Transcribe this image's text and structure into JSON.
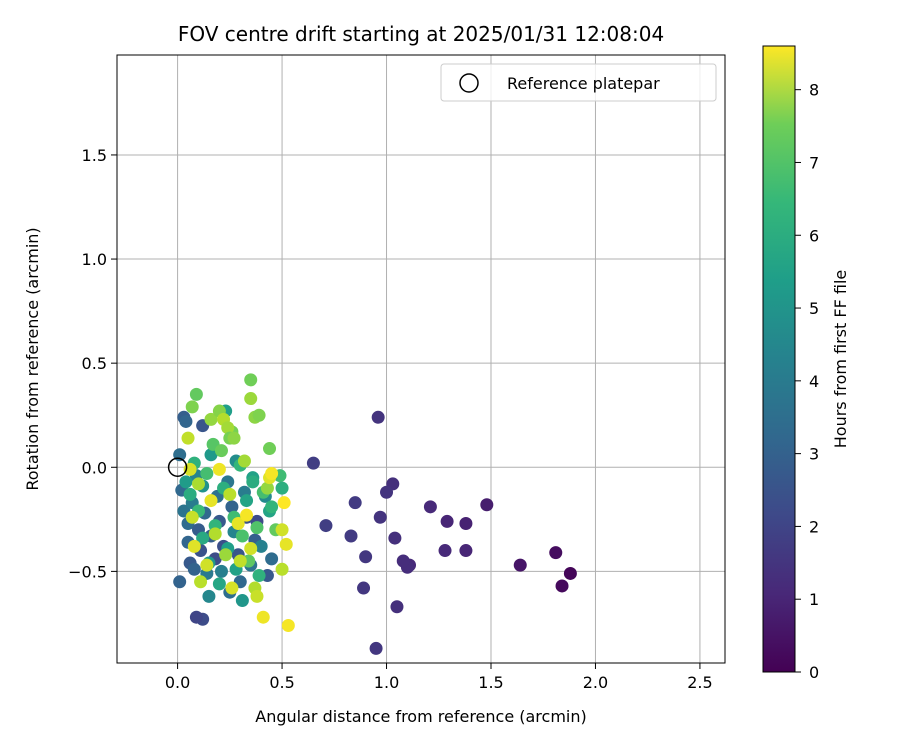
{
  "chart_data": {
    "type": "scatter",
    "title": "FOV centre drift starting at 2025/01/31 12:08:04",
    "xlabel": "Angular distance from reference (arcmin)",
    "ylabel": "Rotation from reference (arcmin)",
    "xlim": [
      -0.29,
      2.62
    ],
    "ylim": [
      -0.94,
      1.98
    ],
    "xticks": [
      0.0,
      0.5,
      1.0,
      1.5,
      2.0,
      2.5
    ],
    "xtick_labels": [
      "0.0",
      "0.5",
      "1.0",
      "1.5",
      "2.0",
      "2.5"
    ],
    "yticks": [
      -0.5,
      0.0,
      0.5,
      1.0,
      1.5
    ],
    "ytick_labels": [
      "−0.5",
      "0.0",
      "0.5",
      "1.0",
      "1.5"
    ],
    "grid": true,
    "legend": {
      "position": "top-right",
      "entries": [
        "Reference platepar"
      ]
    },
    "reference_point": {
      "x": 0.0,
      "y": 0.0
    },
    "colorbar": {
      "label": "Hours from first FF file",
      "colormap": "viridis",
      "range": [
        0,
        8.6
      ],
      "ticks": [
        0,
        1,
        2,
        3,
        4,
        5,
        6,
        7,
        8
      ],
      "tick_labels": [
        "0",
        "1",
        "2",
        "3",
        "4",
        "5",
        "6",
        "7",
        "8"
      ]
    },
    "points": [
      {
        "x": 1.88,
        "y": -0.51,
        "c": 0.1
      },
      {
        "x": 1.84,
        "y": -0.57,
        "c": 0.2
      },
      {
        "x": 1.81,
        "y": -0.41,
        "c": 0.3
      },
      {
        "x": 1.64,
        "y": -0.47,
        "c": 0.5
      },
      {
        "x": 1.48,
        "y": -0.18,
        "c": 0.7
      },
      {
        "x": 1.38,
        "y": -0.27,
        "c": 0.8
      },
      {
        "x": 1.38,
        "y": -0.4,
        "c": 0.9
      },
      {
        "x": 1.29,
        "y": -0.26,
        "c": 0.9
      },
      {
        "x": 1.28,
        "y": -0.4,
        "c": 1.0
      },
      {
        "x": 1.21,
        "y": -0.19,
        "c": 1.0
      },
      {
        "x": 1.11,
        "y": -0.47,
        "c": 1.0
      },
      {
        "x": 1.1,
        "y": -0.48,
        "c": 1.1
      },
      {
        "x": 1.08,
        "y": -0.45,
        "c": 1.1
      },
      {
        "x": 1.05,
        "y": -0.67,
        "c": 1.2
      },
      {
        "x": 1.04,
        "y": -0.34,
        "c": 1.2
      },
      {
        "x": 1.03,
        "y": -0.08,
        "c": 1.2
      },
      {
        "x": 1.0,
        "y": -0.12,
        "c": 1.3
      },
      {
        "x": 0.97,
        "y": -0.24,
        "c": 1.3
      },
      {
        "x": 0.96,
        "y": 0.24,
        "c": 1.3
      },
      {
        "x": 0.95,
        "y": -0.87,
        "c": 1.4
      },
      {
        "x": 0.9,
        "y": -0.43,
        "c": 1.4
      },
      {
        "x": 0.89,
        "y": -0.58,
        "c": 1.4
      },
      {
        "x": 0.85,
        "y": -0.17,
        "c": 1.5
      },
      {
        "x": 0.83,
        "y": -0.33,
        "c": 1.5
      },
      {
        "x": 0.71,
        "y": -0.28,
        "c": 1.6
      },
      {
        "x": 0.65,
        "y": 0.02,
        "c": 1.6
      },
      {
        "x": 0.12,
        "y": -0.73,
        "c": 2.0
      },
      {
        "x": 0.09,
        "y": -0.72,
        "c": 1.8
      },
      {
        "x": 0.01,
        "y": -0.55,
        "c": 2.7
      },
      {
        "x": 0.03,
        "y": 0.24,
        "c": 2.6
      },
      {
        "x": 0.04,
        "y": 0.22,
        "c": 2.8
      },
      {
        "x": 0.01,
        "y": 0.06,
        "c": 3.1
      },
      {
        "x": 0.02,
        "y": -0.11,
        "c": 2.9
      },
      {
        "x": 0.03,
        "y": -0.21,
        "c": 3.3
      },
      {
        "x": 0.05,
        "y": -0.27,
        "c": 3.0
      },
      {
        "x": 0.05,
        "y": -0.36,
        "c": 2.8
      },
      {
        "x": 0.06,
        "y": -0.46,
        "c": 2.4
      },
      {
        "x": 0.07,
        "y": -0.17,
        "c": 3.6
      },
      {
        "x": 0.08,
        "y": -0.49,
        "c": 2.7
      },
      {
        "x": 0.09,
        "y": -0.04,
        "c": 3.9
      },
      {
        "x": 0.1,
        "y": -0.3,
        "c": 2.5
      },
      {
        "x": 0.11,
        "y": -0.4,
        "c": 2.2
      },
      {
        "x": 0.12,
        "y": -0.09,
        "c": 4.4
      },
      {
        "x": 0.13,
        "y": -0.22,
        "c": 2.9
      },
      {
        "x": 0.14,
        "y": -0.51,
        "c": 3.5
      },
      {
        "x": 0.15,
        "y": -0.62,
        "c": 4.0
      },
      {
        "x": 0.16,
        "y": -0.33,
        "c": 2.6
      },
      {
        "x": 0.12,
        "y": 0.2,
        "c": 2.3
      },
      {
        "x": 0.16,
        "y": 0.06,
        "c": 4.6
      },
      {
        "x": 0.18,
        "y": -0.44,
        "c": 2.0
      },
      {
        "x": 0.19,
        "y": -0.14,
        "c": 3.2
      },
      {
        "x": 0.2,
        "y": -0.26,
        "c": 2.4
      },
      {
        "x": 0.21,
        "y": -0.5,
        "c": 3.7
      },
      {
        "x": 0.22,
        "y": -0.38,
        "c": 2.1
      },
      {
        "x": 0.23,
        "y": 0.27,
        "c": 4.8
      },
      {
        "x": 0.24,
        "y": -0.07,
        "c": 3.4
      },
      {
        "x": 0.25,
        "y": -0.6,
        "c": 3.1
      },
      {
        "x": 0.26,
        "y": -0.19,
        "c": 2.7
      },
      {
        "x": 0.27,
        "y": -0.31,
        "c": 3.9
      },
      {
        "x": 0.28,
        "y": 0.03,
        "c": 4.2
      },
      {
        "x": 0.29,
        "y": -0.42,
        "c": 2.3
      },
      {
        "x": 0.3,
        "y": -0.55,
        "c": 2.9
      },
      {
        "x": 0.31,
        "y": -0.64,
        "c": 4.5
      },
      {
        "x": 0.32,
        "y": -0.12,
        "c": 3.6
      },
      {
        "x": 0.33,
        "y": -0.24,
        "c": 2.2
      },
      {
        "x": 0.35,
        "y": -0.47,
        "c": 3.3
      },
      {
        "x": 0.36,
        "y": -0.05,
        "c": 4.9
      },
      {
        "x": 0.37,
        "y": -0.35,
        "c": 2.6
      },
      {
        "x": 0.38,
        "y": -0.26,
        "c": 2.0
      },
      {
        "x": 0.4,
        "y": -0.38,
        "c": 3.8
      },
      {
        "x": 0.42,
        "y": -0.14,
        "c": 4.1
      },
      {
        "x": 0.43,
        "y": -0.52,
        "c": 2.4
      },
      {
        "x": 0.44,
        "y": -0.21,
        "c": 5.0
      },
      {
        "x": 0.45,
        "y": -0.44,
        "c": 3.0
      },
      {
        "x": 0.04,
        "y": -0.07,
        "c": 4.7
      },
      {
        "x": 0.06,
        "y": -0.13,
        "c": 5.3
      },
      {
        "x": 0.08,
        "y": 0.02,
        "c": 5.5
      },
      {
        "x": 0.1,
        "y": -0.21,
        "c": 5.8
      },
      {
        "x": 0.12,
        "y": -0.34,
        "c": 5.2
      },
      {
        "x": 0.14,
        "y": -0.03,
        "c": 6.0
      },
      {
        "x": 0.15,
        "y": -0.46,
        "c": 4.6
      },
      {
        "x": 0.17,
        "y": 0.11,
        "c": 6.3
      },
      {
        "x": 0.18,
        "y": -0.28,
        "c": 5.6
      },
      {
        "x": 0.2,
        "y": -0.56,
        "c": 5.1
      },
      {
        "x": 0.21,
        "y": 0.08,
        "c": 6.6
      },
      {
        "x": 0.22,
        "y": -0.1,
        "c": 5.4
      },
      {
        "x": 0.24,
        "y": -0.39,
        "c": 4.8
      },
      {
        "x": 0.26,
        "y": 0.17,
        "c": 6.8
      },
      {
        "x": 0.27,
        "y": -0.24,
        "c": 5.9
      },
      {
        "x": 0.28,
        "y": -0.49,
        "c": 4.9
      },
      {
        "x": 0.3,
        "y": 0.01,
        "c": 5.7
      },
      {
        "x": 0.31,
        "y": -0.33,
        "c": 6.1
      },
      {
        "x": 0.33,
        "y": -0.16,
        "c": 5.0
      },
      {
        "x": 0.34,
        "y": -0.45,
        "c": 6.4
      },
      {
        "x": 0.36,
        "y": -0.07,
        "c": 5.3
      },
      {
        "x": 0.38,
        "y": -0.29,
        "c": 6.2
      },
      {
        "x": 0.39,
        "y": -0.52,
        "c": 5.5
      },
      {
        "x": 0.41,
        "y": -0.12,
        "c": 6.0
      },
      {
        "x": 0.44,
        "y": 0.09,
        "c": 6.7
      },
      {
        "x": 0.45,
        "y": -0.19,
        "c": 5.6
      },
      {
        "x": 0.47,
        "y": -0.3,
        "c": 6.5
      },
      {
        "x": 0.49,
        "y": -0.04,
        "c": 5.9
      },
      {
        "x": 0.5,
        "y": -0.1,
        "c": 5.4
      },
      {
        "x": 0.07,
        "y": 0.29,
        "c": 6.9
      },
      {
        "x": 0.09,
        "y": 0.35,
        "c": 6.5
      },
      {
        "x": 0.16,
        "y": 0.23,
        "c": 7.2
      },
      {
        "x": 0.2,
        "y": 0.27,
        "c": 7.0
      },
      {
        "x": 0.22,
        "y": 0.23,
        "c": 7.6
      },
      {
        "x": 0.24,
        "y": 0.19,
        "c": 7.4
      },
      {
        "x": 0.25,
        "y": 0.14,
        "c": 6.8
      },
      {
        "x": 0.27,
        "y": 0.14,
        "c": 7.1
      },
      {
        "x": 0.35,
        "y": 0.42,
        "c": 6.7
      },
      {
        "x": 0.35,
        "y": 0.33,
        "c": 7.3
      },
      {
        "x": 0.37,
        "y": 0.24,
        "c": 7.1
      },
      {
        "x": 0.39,
        "y": 0.25,
        "c": 6.9
      },
      {
        "x": 0.05,
        "y": 0.14,
        "c": 7.8
      },
      {
        "x": 0.06,
        "y": -0.01,
        "c": 8.1
      },
      {
        "x": 0.07,
        "y": -0.24,
        "c": 7.9
      },
      {
        "x": 0.08,
        "y": -0.38,
        "c": 8.2
      },
      {
        "x": 0.1,
        "y": -0.08,
        "c": 7.5
      },
      {
        "x": 0.11,
        "y": -0.55,
        "c": 7.7
      },
      {
        "x": 0.14,
        "y": -0.47,
        "c": 8.0
      },
      {
        "x": 0.16,
        "y": -0.16,
        "c": 8.3
      },
      {
        "x": 0.18,
        "y": -0.32,
        "c": 7.6
      },
      {
        "x": 0.2,
        "y": -0.01,
        "c": 8.4
      },
      {
        "x": 0.23,
        "y": -0.42,
        "c": 7.3
      },
      {
        "x": 0.25,
        "y": -0.13,
        "c": 7.7
      },
      {
        "x": 0.26,
        "y": -0.58,
        "c": 8.1
      },
      {
        "x": 0.29,
        "y": -0.27,
        "c": 8.3
      },
      {
        "x": 0.3,
        "y": -0.45,
        "c": 7.8
      },
      {
        "x": 0.32,
        "y": 0.03,
        "c": 7.4
      },
      {
        "x": 0.33,
        "y": -0.23,
        "c": 8.5
      },
      {
        "x": 0.35,
        "y": -0.39,
        "c": 8.0
      },
      {
        "x": 0.37,
        "y": -0.58,
        "c": 7.6
      },
      {
        "x": 0.38,
        "y": -0.62,
        "c": 7.9
      },
      {
        "x": 0.41,
        "y": -0.72,
        "c": 8.4
      },
      {
        "x": 0.43,
        "y": -0.1,
        "c": 7.2
      },
      {
        "x": 0.44,
        "y": -0.05,
        "c": 8.2
      },
      {
        "x": 0.45,
        "y": -0.03,
        "c": 8.5
      },
      {
        "x": 0.5,
        "y": -0.3,
        "c": 8.0
      },
      {
        "x": 0.5,
        "y": -0.49,
        "c": 7.7
      },
      {
        "x": 0.52,
        "y": -0.37,
        "c": 8.3
      },
      {
        "x": 0.53,
        "y": -0.76,
        "c": 8.5
      },
      {
        "x": 0.51,
        "y": -0.17,
        "c": 8.6
      }
    ]
  }
}
